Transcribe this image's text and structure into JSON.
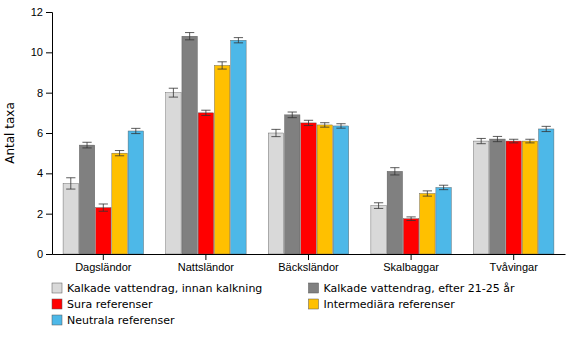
{
  "chart_data": {
    "type": "bar",
    "ylabel": "Antal taxa",
    "categories": [
      "Dagsländor",
      "Nattsländor",
      "Bäcksländor",
      "Skalbaggar",
      "Tvåvingar"
    ],
    "series": [
      {
        "name": "Kalkade vattendrag, innan kalkning",
        "color": "#d9d9d9",
        "values": [
          3.5,
          8.0,
          6.0,
          2.4,
          5.6
        ],
        "errors": [
          0.28,
          0.22,
          0.18,
          0.14,
          0.13
        ]
      },
      {
        "name": "Kalkade vattendrag, efter 21-25 år",
        "color": "#808080",
        "values": [
          5.4,
          10.8,
          6.9,
          4.1,
          5.7
        ],
        "errors": [
          0.14,
          0.18,
          0.14,
          0.18,
          0.13
        ]
      },
      {
        "name": "Sura referenser",
        "color": "#ff0000",
        "values": [
          2.3,
          7.0,
          6.5,
          1.75,
          5.6
        ],
        "errors": [
          0.18,
          0.13,
          0.13,
          0.09,
          0.09
        ]
      },
      {
        "name": "Intermediära referenser",
        "color": "#ffc000",
        "values": [
          5.0,
          9.35,
          6.4,
          3.0,
          5.6
        ],
        "errors": [
          0.13,
          0.18,
          0.11,
          0.13,
          0.09
        ]
      },
      {
        "name": "Neutrala referenser",
        "color": "#4db8e8",
        "values": [
          6.1,
          10.6,
          6.35,
          3.3,
          6.2
        ],
        "errors": [
          0.13,
          0.13,
          0.11,
          0.11,
          0.13
        ]
      }
    ],
    "ylim": [
      0,
      12
    ],
    "yticks": [
      0,
      2,
      4,
      6,
      8,
      10,
      12
    ],
    "grid": false,
    "legend": "bottom"
  }
}
